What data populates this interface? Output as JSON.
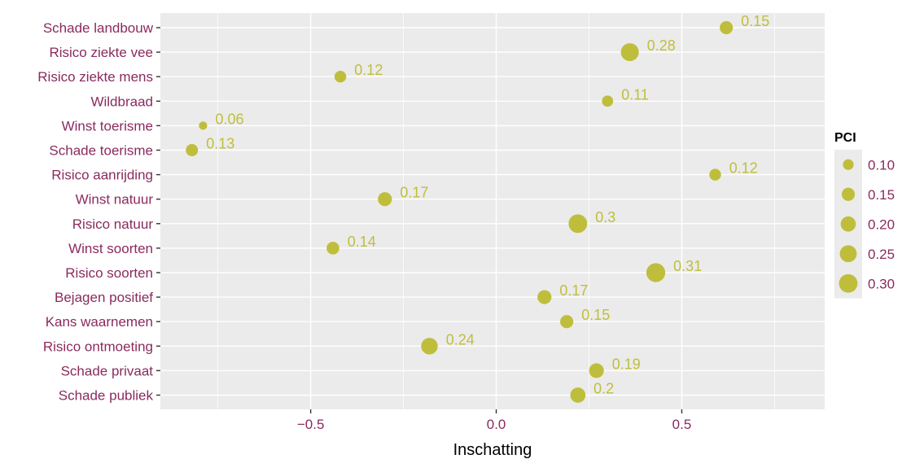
{
  "chart_data": {
    "type": "scatter",
    "xlabel": "Inschatting",
    "ylabel": "",
    "xlim": [
      -0.905,
      0.885
    ],
    "x_ticks": [
      -0.5,
      0.0,
      0.5
    ],
    "x_tick_labels": [
      "−0.5",
      "0.0",
      "0.5"
    ],
    "categories": [
      "Schade landbouw",
      "Risico ziekte vee",
      "Risico ziekte mens",
      "Wildbraad",
      "Winst toerisme",
      "Schade toerisme",
      "Risico aanrijding",
      "Winst natuur",
      "Risico natuur",
      "Winst soorten",
      "Risico soorten",
      "Bejagen positief",
      "Kans waarnemen",
      "Risico ontmoeting",
      "Schade privaat",
      "Schade publiek"
    ],
    "x": [
      0.62,
      0.36,
      -0.42,
      0.3,
      -0.79,
      -0.82,
      0.59,
      -0.3,
      0.22,
      -0.44,
      0.43,
      0.13,
      0.19,
      -0.18,
      0.27,
      0.22
    ],
    "size_values": [
      0.15,
      0.28,
      0.12,
      0.11,
      0.06,
      0.13,
      0.12,
      0.17,
      0.3,
      0.14,
      0.31,
      0.17,
      0.15,
      0.24,
      0.19,
      0.2
    ],
    "labels": [
      "0.15",
      "0.28",
      "0.12",
      "0.11",
      "0.06",
      "0.13",
      "0.12",
      "0.17",
      "0.3",
      "0.14",
      "0.31",
      "0.17",
      "0.15",
      "0.24",
      "0.19",
      "0.2"
    ],
    "grid": true,
    "legend": {
      "title": "PCI",
      "placement": "right",
      "values": [
        0.1,
        0.15,
        0.2,
        0.25,
        0.3
      ],
      "labels": [
        "0.10",
        "0.15",
        "0.20",
        "0.25",
        "0.30"
      ]
    },
    "colors": {
      "point": "#BFBE3C",
      "label_text": "#8B2A5E",
      "panel_background": "#EBEBEB",
      "grid": "#FFFFFF",
      "axis_tick": "#333333"
    }
  }
}
